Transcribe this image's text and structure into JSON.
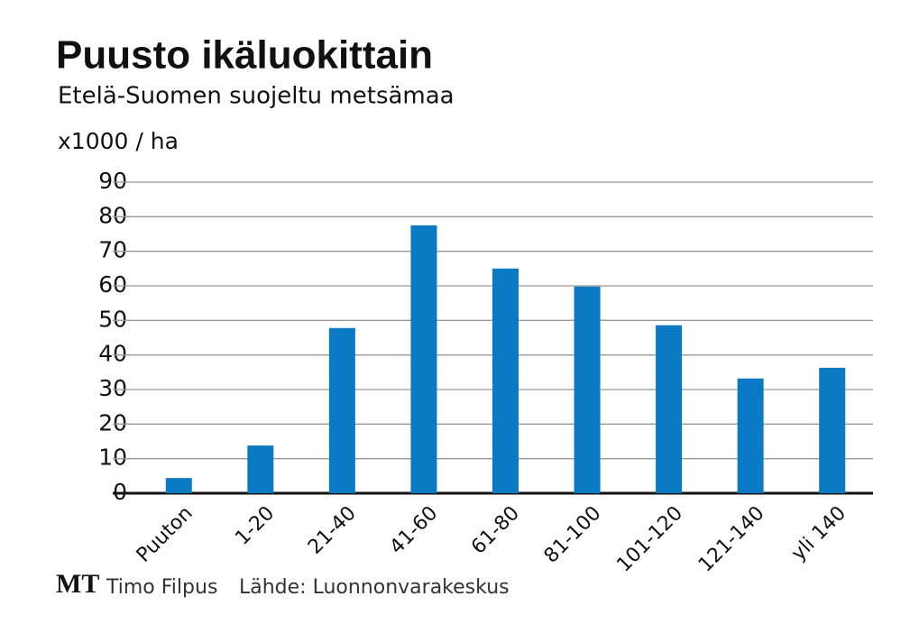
{
  "chart_data": {
    "type": "bar",
    "title": "Puusto ikäluokittain",
    "subtitle": "Etelä-Suomen suojeltu metsämaa",
    "y_label": "x1000 / ha",
    "logo": "MT",
    "author": "Timo Filpus",
    "source": "Lähde: Luonnonvarakeskus",
    "categories": [
      "Puuton",
      "1-20",
      "21-40",
      "41-60",
      "61-80",
      "81-100",
      "101-120",
      "121-140",
      "yli 140"
    ],
    "values": [
      4.4,
      13.8,
      47.8,
      77.5,
      65,
      59.8,
      48.6,
      33.2,
      36.3
    ],
    "color": "#0a7ac4",
    "ylim": [
      0,
      90
    ],
    "yticks": [
      0,
      10,
      20,
      30,
      40,
      50,
      60,
      70,
      80,
      90
    ],
    "grid": true
  }
}
